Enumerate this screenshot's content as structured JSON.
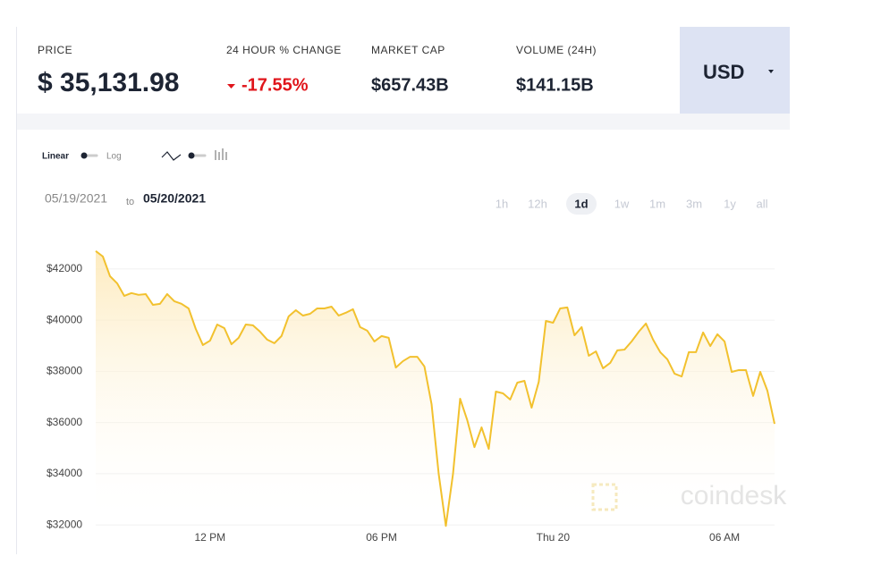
{
  "header": {
    "stats": [
      {
        "label": "PRICE",
        "value": "$ 35,131.98"
      },
      {
        "label": "24 HOUR % CHANGE",
        "value": "-17.55%"
      },
      {
        "label": "MARKET CAP",
        "value": "$657.43B"
      },
      {
        "label": "VOLUME (24H)",
        "value": "$141.15B"
      }
    ],
    "currency": "USD"
  },
  "controls": {
    "scales": [
      "Linear",
      "Log"
    ],
    "date_from": "05/19/2021",
    "date_to_word": "to",
    "date_to": "05/20/2021",
    "ranges": [
      "1h",
      "12h",
      "1d",
      "1w",
      "1m",
      "3m",
      "1y",
      "all"
    ],
    "active_range": "1d"
  },
  "watermark": "coindesk",
  "chart_data": {
    "type": "line",
    "color": "#f2c12e",
    "area": true,
    "grid": true,
    "categories": [
      null,
      null,
      null,
      null,
      null,
      null,
      null,
      null,
      null,
      null,
      null,
      null,
      null,
      null,
      null,
      null,
      "12 PM",
      null,
      null,
      null,
      null,
      null,
      null,
      null,
      null,
      null,
      null,
      null,
      null,
      null,
      null,
      null,
      null,
      null,
      null,
      null,
      null,
      null,
      null,
      null,
      "06 PM",
      null,
      null,
      null,
      null,
      null,
      null,
      null,
      null,
      null,
      null,
      null,
      null,
      null,
      null,
      null,
      null,
      null,
      null,
      null,
      null,
      null,
      null,
      null,
      "Thu 20",
      null,
      null,
      null,
      null,
      null,
      null,
      null,
      null,
      null,
      null,
      null,
      null,
      null,
      null,
      null,
      null,
      null,
      null,
      null,
      null,
      null,
      null,
      null,
      "06 AM",
      null,
      null,
      null,
      null,
      null,
      null,
      null
    ],
    "values": [
      42700,
      42490,
      41720,
      41440,
      40950,
      41060,
      40990,
      41020,
      40600,
      40640,
      41020,
      40740,
      40640,
      40460,
      39660,
      39030,
      39200,
      39830,
      39690,
      39060,
      39310,
      39830,
      39800,
      39550,
      39240,
      39100,
      39380,
      40150,
      40390,
      40180,
      40250,
      40460,
      40460,
      40530,
      40180,
      40290,
      40430,
      39730,
      39590,
      39170,
      39380,
      39310,
      38150,
      38400,
      38570,
      38570,
      38190,
      36720,
      33990,
      31960,
      33990,
      36930,
      36090,
      35040,
      35810,
      34970,
      37210,
      37140,
      36900,
      37560,
      37630,
      36580,
      37590,
      39970,
      39900,
      40460,
      40500,
      39410,
      39730,
      38610,
      38780,
      38120,
      38330,
      38820,
      38850,
      39170,
      39550,
      39870,
      39240,
      38750,
      38470,
      37910,
      37800,
      38750,
      38750,
      39520,
      38990,
      39450,
      39170,
      37980,
      38050,
      38050,
      37040,
      37980,
      37240,
      35950
    ],
    "ylim": [
      31900,
      42800
    ],
    "yticks": [
      {
        "value": 32000,
        "label": "$32000"
      },
      {
        "value": 34000,
        "label": "$34000"
      },
      {
        "value": 36000,
        "label": "$36000"
      },
      {
        "value": 38000,
        "label": "$38000"
      },
      {
        "value": 40000,
        "label": "$40000"
      },
      {
        "value": 42000,
        "label": "$42000"
      }
    ]
  }
}
